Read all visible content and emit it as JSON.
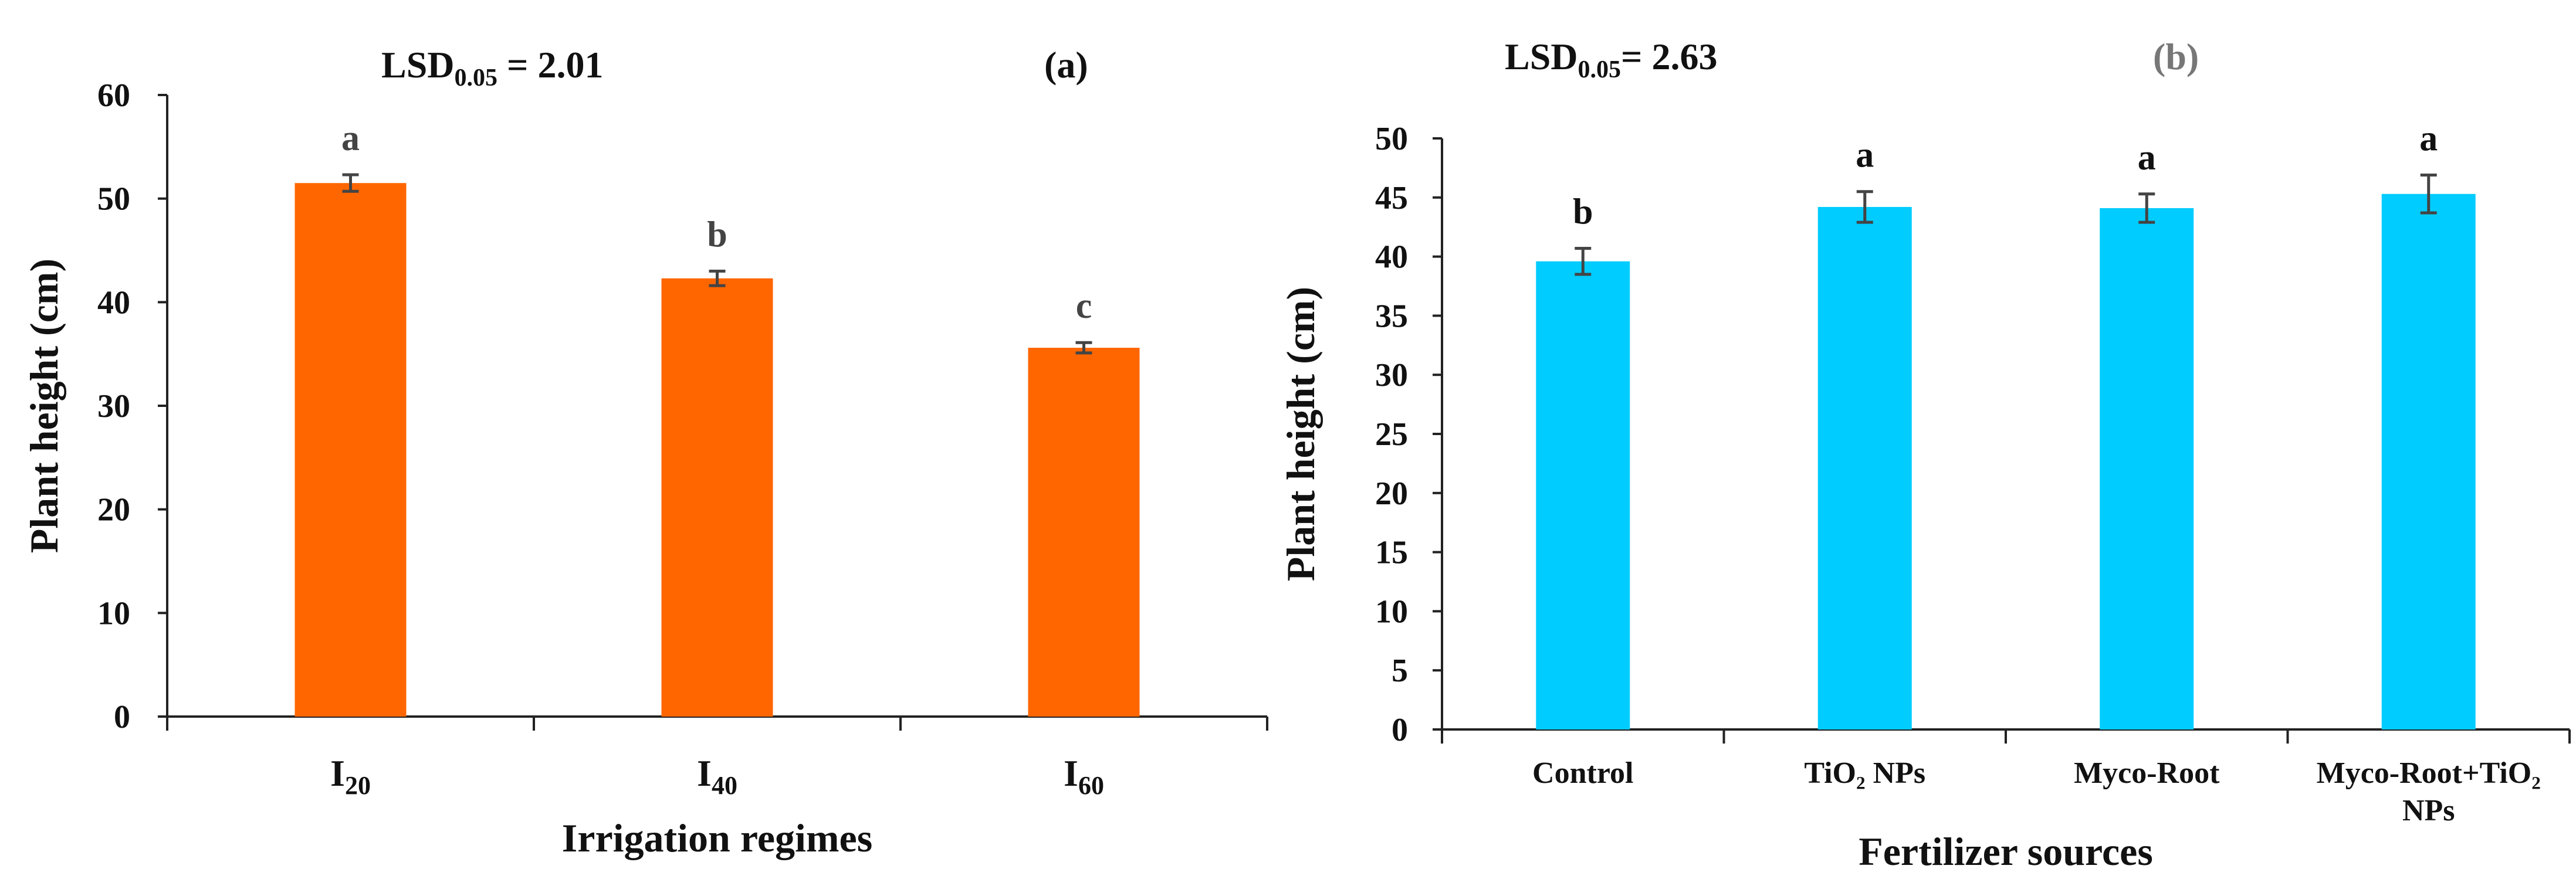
{
  "chart_data": [
    {
      "type": "bar",
      "panel_label": "(a)",
      "annotation": {
        "prefix": "LSD",
        "subscript": "0.05",
        "suffix": " = 2.01"
      },
      "categories": [
        {
          "base": "I",
          "sub": "20"
        },
        {
          "base": "I",
          "sub": "40"
        },
        {
          "base": "I",
          "sub": "60"
        }
      ],
      "values": [
        51.5,
        42.3,
        35.6
      ],
      "errors": [
        0.8,
        0.7,
        0.5
      ],
      "significance_letters": [
        "a",
        "b",
        "c"
      ],
      "xlabel": "Irrigation regimes",
      "ylabel": "Plant height (cm)",
      "ylim": [
        0,
        60
      ],
      "yticks": [
        0,
        10,
        20,
        30,
        40,
        50,
        60
      ],
      "bar_color": "#ff6600",
      "letter_color": "#444444",
      "grid": false
    },
    {
      "type": "bar",
      "panel_label": "(b)",
      "annotation": {
        "prefix": "LSD",
        "subscript": "0.05",
        "suffix": "= 2.63"
      },
      "categories": [
        {
          "lines": [
            "Control"
          ]
        },
        {
          "lines": [
            "TiO₂ NPs"
          ]
        },
        {
          "lines": [
            "Myco-Root"
          ]
        },
        {
          "lines": [
            "Myco-Root+TiO₂",
            "NPs"
          ]
        }
      ],
      "values": [
        39.6,
        44.2,
        44.1,
        45.3
      ],
      "errors": [
        1.1,
        1.3,
        1.2,
        1.6
      ],
      "significance_letters": [
        "b",
        "a",
        "a",
        "a"
      ],
      "xlabel": "Fertilizer sources",
      "ylabel": "Plant height (cm)",
      "ylim": [
        0,
        50
      ],
      "yticks": [
        0,
        5,
        10,
        15,
        20,
        25,
        30,
        35,
        40,
        45,
        50
      ],
      "bar_color": "#00ccff",
      "letter_color": "#111111",
      "panel_label_color": "#777777",
      "grid": false
    }
  ]
}
